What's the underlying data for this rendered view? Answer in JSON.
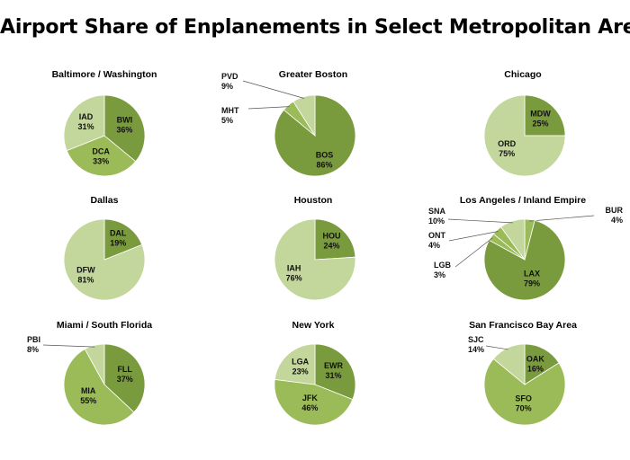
{
  "title": "Airport Share of Enplanements in Select Metropolitan Areas",
  "colors": {
    "dark": "#7a9a3e",
    "medium": "#9bbb59",
    "light": "#c3d69b",
    "edge": "#ffffff",
    "leader": "#555555"
  },
  "chart_data": [
    {
      "type": "pie",
      "title": "Baltimore /  Washington",
      "slices": [
        {
          "label": "BWI",
          "value": 36,
          "pct": "36%",
          "shade": "dark"
        },
        {
          "label": "DCA",
          "value": 33,
          "pct": "33%",
          "shade": "medium"
        },
        {
          "label": "IAD",
          "value": 31,
          "pct": "31%",
          "shade": "light"
        }
      ]
    },
    {
      "type": "pie",
      "title": "Greater Boston",
      "slices": [
        {
          "label": "BOS",
          "value": 86,
          "pct": "86%",
          "shade": "dark"
        },
        {
          "label": "MHT",
          "value": 5,
          "pct": "5%",
          "shade": "medium"
        },
        {
          "label": "PVD",
          "value": 9,
          "pct": "9%",
          "shade": "light"
        }
      ]
    },
    {
      "type": "pie",
      "title": "Chicago",
      "slices": [
        {
          "label": "MDW",
          "value": 25,
          "pct": "25%",
          "shade": "dark"
        },
        {
          "label": "ORD",
          "value": 75,
          "pct": "75%",
          "shade": "light"
        }
      ]
    },
    {
      "type": "pie",
      "title": "Dallas",
      "slices": [
        {
          "label": "DAL",
          "value": 19,
          "pct": "19%",
          "shade": "dark"
        },
        {
          "label": "DFW",
          "value": 81,
          "pct": "81%",
          "shade": "light"
        }
      ]
    },
    {
      "type": "pie",
      "title": "Houston",
      "slices": [
        {
          "label": "HOU",
          "value": 24,
          "pct": "24%",
          "shade": "dark"
        },
        {
          "label": "IAH",
          "value": 76,
          "pct": "76%",
          "shade": "light"
        }
      ]
    },
    {
      "type": "pie",
      "title": "Los Angeles / Inland Empire",
      "slices": [
        {
          "label": "BUR",
          "value": 4,
          "pct": "4%",
          "shade": "medium"
        },
        {
          "label": "LAX",
          "value": 79,
          "pct": "79%",
          "shade": "dark"
        },
        {
          "label": "LGB",
          "value": 3,
          "pct": "3%",
          "shade": "medium"
        },
        {
          "label": "ONT",
          "value": 4,
          "pct": "4%",
          "shade": "medium"
        },
        {
          "label": "SNA",
          "value": 10,
          "pct": "10%",
          "shade": "light"
        }
      ]
    },
    {
      "type": "pie",
      "title": "Miami / South Florida",
      "slices": [
        {
          "label": "FLL",
          "value": 37,
          "pct": "37%",
          "shade": "dark"
        },
        {
          "label": "MIA",
          "value": 55,
          "pct": "55%",
          "shade": "medium"
        },
        {
          "label": "PBI",
          "value": 8,
          "pct": "8%",
          "shade": "light"
        }
      ]
    },
    {
      "type": "pie",
      "title": "New York",
      "slices": [
        {
          "label": "EWR",
          "value": 31,
          "pct": "31%",
          "shade": "dark"
        },
        {
          "label": "JFK",
          "value": 46,
          "pct": "46%",
          "shade": "medium"
        },
        {
          "label": "LGA",
          "value": 23,
          "pct": "23%",
          "shade": "light"
        }
      ]
    },
    {
      "type": "pie",
      "title": "San Francisco Bay Area",
      "slices": [
        {
          "label": "OAK",
          "value": 16,
          "pct": "16%",
          "shade": "dark"
        },
        {
          "label": "SFO",
          "value": 70,
          "pct": "70%",
          "shade": "medium"
        },
        {
          "label": "SJC",
          "value": 14,
          "pct": "14%",
          "shade": "light"
        }
      ]
    }
  ]
}
